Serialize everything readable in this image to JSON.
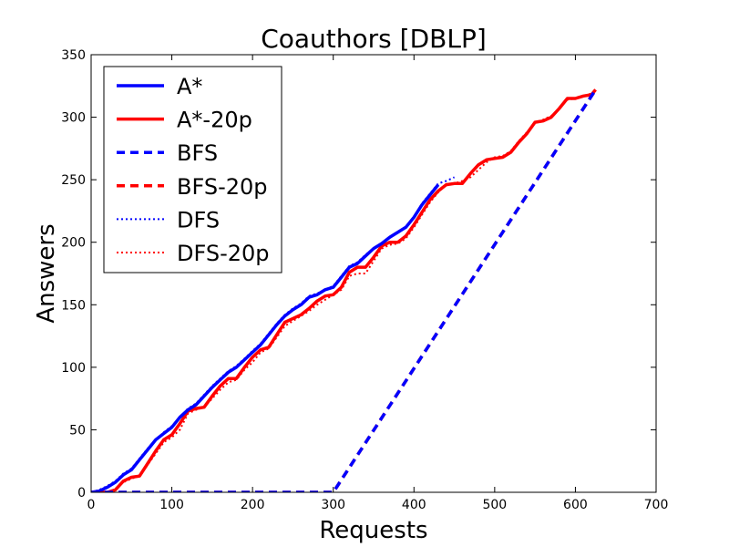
{
  "chart_data": {
    "type": "line",
    "title": "Coauthors [DBLP]",
    "xlabel": "Requests",
    "ylabel": "Answers",
    "xlim": [
      0,
      700
    ],
    "ylim": [
      0,
      350
    ],
    "xticks": [
      "0",
      "100",
      "200",
      "300",
      "400",
      "500",
      "600",
      "700"
    ],
    "yticks": [
      "0",
      "50",
      "100",
      "150",
      "200",
      "250",
      "300",
      "350"
    ],
    "grid": false,
    "legend_position": "top-left",
    "series": [
      {
        "name": "A*",
        "color": "#0000ff",
        "style": "solid",
        "x": [
          0,
          10,
          20,
          30,
          40,
          50,
          60,
          70,
          80,
          90,
          100,
          110,
          120,
          130,
          140,
          150,
          160,
          170,
          180,
          190,
          200,
          210,
          220,
          230,
          240,
          250,
          260,
          270,
          280,
          290,
          300,
          310,
          320,
          330,
          340,
          350,
          360,
          370,
          380,
          390,
          400,
          410,
          420,
          430
        ],
        "y": [
          0,
          1,
          4,
          8,
          14,
          18,
          26,
          34,
          42,
          47,
          52,
          60,
          66,
          70,
          77,
          84,
          90,
          96,
          100,
          106,
          112,
          118,
          126,
          134,
          141,
          146,
          150,
          156,
          158,
          162,
          164,
          172,
          180,
          183,
          189,
          195,
          199,
          204,
          208,
          212,
          220,
          230,
          238,
          246
        ]
      },
      {
        "name": "A*-20p",
        "color": "#ff0000",
        "style": "solid",
        "x": [
          0,
          20,
          30,
          40,
          50,
          60,
          70,
          80,
          90,
          100,
          110,
          120,
          130,
          140,
          150,
          160,
          170,
          180,
          190,
          200,
          210,
          220,
          230,
          240,
          250,
          260,
          270,
          280,
          290,
          300,
          310,
          320,
          330,
          340,
          350,
          360,
          370,
          380,
          390,
          400,
          410,
          420,
          430,
          440,
          450,
          460,
          470,
          480,
          490,
          500,
          510,
          520,
          530,
          540,
          550,
          560,
          570,
          580,
          590,
          600,
          610,
          620,
          625
        ],
        "y": [
          0,
          0,
          2,
          9,
          12,
          13,
          23,
          33,
          42,
          46,
          55,
          65,
          67,
          68,
          77,
          85,
          91,
          91,
          100,
          108,
          114,
          116,
          126,
          136,
          139,
          142,
          147,
          153,
          157,
          158,
          164,
          176,
          180,
          180,
          188,
          197,
          200,
          200,
          205,
          214,
          224,
          234,
          241,
          246,
          247,
          247,
          255,
          262,
          266,
          267,
          268,
          272,
          280,
          287,
          296,
          297,
          300,
          307,
          315,
          315,
          317,
          318,
          322
        ]
      },
      {
        "name": "BFS",
        "color": "#0000ff",
        "style": "dashed",
        "x": [
          0,
          300,
          624
        ],
        "y": [
          0,
          0,
          321
        ]
      },
      {
        "name": "BFS-20p",
        "color": "#ff0000",
        "style": "dashed",
        "x": [
          0,
          300,
          624
        ],
        "y": [
          0,
          0,
          321
        ]
      },
      {
        "name": "DFS",
        "color": "#0000ff",
        "style": "dotted",
        "x": [
          0,
          10,
          20,
          30,
          40,
          50,
          60,
          70,
          80,
          90,
          100,
          110,
          120,
          130,
          140,
          150,
          160,
          170,
          180,
          190,
          200,
          210,
          220,
          230,
          240,
          250,
          260,
          270,
          280,
          290,
          300,
          310,
          320,
          330,
          340,
          350,
          360,
          370,
          380,
          390,
          400,
          410,
          420,
          430,
          440,
          450
        ],
        "y": [
          0,
          2,
          5,
          9,
          15,
          19,
          27,
          35,
          42,
          48,
          53,
          60,
          67,
          71,
          78,
          85,
          91,
          97,
          101,
          107,
          113,
          119,
          127,
          135,
          142,
          147,
          151,
          157,
          159,
          162,
          165,
          173,
          181,
          184,
          190,
          195,
          199,
          204,
          208,
          212,
          220,
          231,
          239,
          247,
          249,
          252
        ]
      },
      {
        "name": "DFS-20p",
        "color": "#ff0000",
        "style": "dotted",
        "x": [
          0,
          20,
          30,
          40,
          50,
          60,
          70,
          80,
          90,
          100,
          110,
          120,
          130,
          140,
          150,
          160,
          170,
          180,
          190,
          200,
          210,
          220,
          230,
          240,
          250,
          260,
          270,
          280,
          290,
          300,
          310,
          320,
          330,
          340,
          350,
          360,
          370,
          380,
          390,
          400,
          410,
          420,
          430,
          440,
          450,
          460,
          470,
          480,
          490,
          500,
          510,
          520,
          530,
          540,
          550,
          560,
          570,
          580,
          590,
          600,
          610,
          620
        ],
        "y": [
          0,
          0,
          2,
          8,
          11,
          13,
          22,
          31,
          40,
          44,
          50,
          63,
          66,
          68,
          75,
          82,
          88,
          90,
          98,
          104,
          112,
          115,
          124,
          133,
          137,
          141,
          145,
          150,
          154,
          158,
          162,
          173,
          175,
          175,
          185,
          195,
          198,
          199,
          203,
          212,
          222,
          232,
          240,
          246,
          247,
          249,
          252,
          258,
          264,
          268,
          269,
          273,
          281,
          288,
          296,
          298,
          301,
          307,
          314,
          315,
          317,
          319
        ]
      }
    ]
  }
}
